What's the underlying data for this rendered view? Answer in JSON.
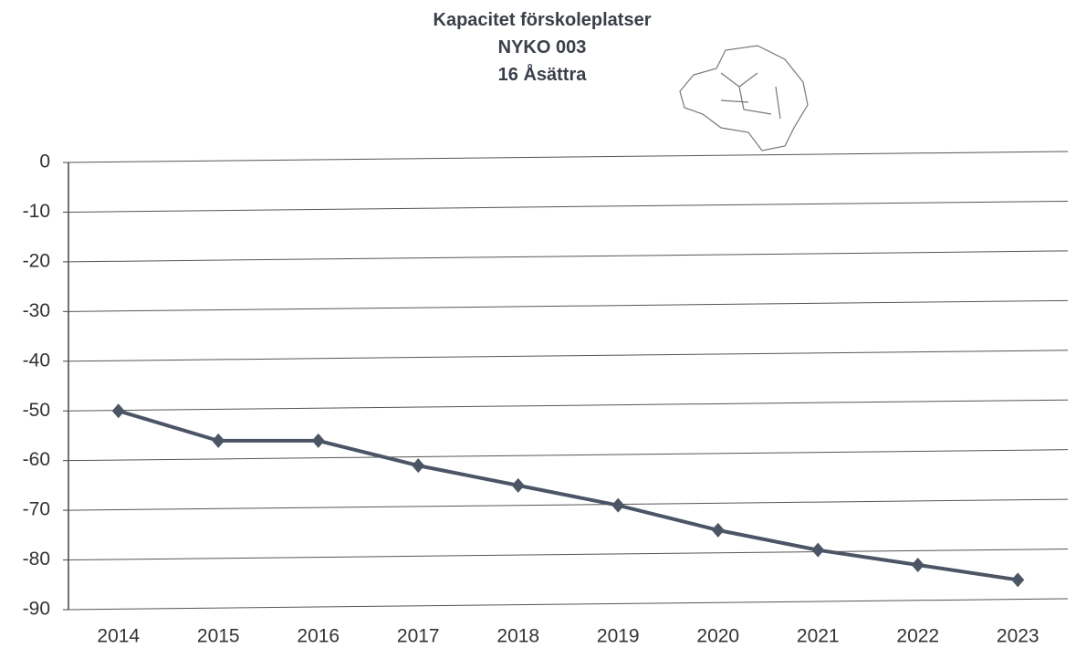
{
  "chart_data": {
    "type": "line",
    "title": "Kapacitet förskoleplatser",
    "subtitle": [
      "NYKO 003",
      "16 Åsättra"
    ],
    "categories": [
      "2014",
      "2015",
      "2016",
      "2017",
      "2018",
      "2019",
      "2020",
      "2021",
      "2022",
      "2023"
    ],
    "series": [
      {
        "name": "Kapacitet",
        "color": "#4b5565",
        "values": [
          -50,
          -56,
          -56,
          -61,
          -65,
          -69,
          -74,
          -78,
          -81,
          -84
        ]
      }
    ],
    "ylim": [
      -90,
      0
    ],
    "yticks": [
      0,
      -10,
      -20,
      -30,
      -40,
      -50,
      -60,
      -70,
      -80,
      -90
    ],
    "grid": true,
    "legend": false
  }
}
